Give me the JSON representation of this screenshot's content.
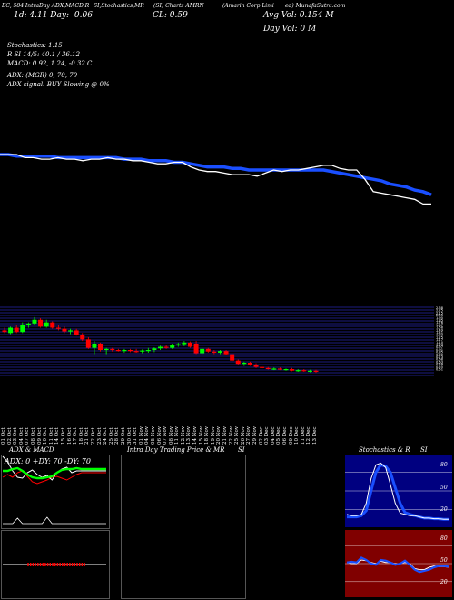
{
  "header": {
    "chart_links": "EC, 584 IntraDay ADX,MACD,R",
    "menu_links": "SI,Stochastics,MR",
    "symbol_links": "(SI) Charts AMRN",
    "company": "(Amarin Corp Limi",
    "domain": "ed) MunafaSutra.com",
    "change_line": "1d: 4.11  Day: -0.06",
    "close_line": "CL: 0.59",
    "avg_vol": "Avg Vol: 0.154  M",
    "day_vol": "Day Vol: 0  M"
  },
  "indicators": {
    "stochastics": "Stochastics: 1.15",
    "rsi": "R                SI 14/5: 40.1 / 36.12",
    "macd": "MACD: 0.92,  1.24,  -0.32  C",
    "adx": "ADX:                        (MGR) 0,  70,  70",
    "adx_signal": "ADX  signal:                          BUY Slowing @ 0%"
  },
  "panels": {
    "adx_macd_title": "ADX  & MACD",
    "adx_values": "ADX: 0   +DY: 70   -DY: 70",
    "intraday_title": "Intra  Day Trading Price  & MR",
    "intraday_si": "SI",
    "stoch_title": "Stochastics & R",
    "stoch_si": "SI",
    "stoch_levels": [
      "80",
      "50",
      "20"
    ],
    "rsi_levels": [
      "80",
      "50",
      "20"
    ]
  },
  "colors": {
    "up": "#00ff00",
    "down": "#ff0000",
    "blue_line": "#1a4fff",
    "white_line": "#ffffff",
    "price_grid": "#3838ff",
    "stoch_bg": "#000080",
    "rsi_bg": "#800000"
  },
  "chart_data": [
    {
      "type": "line",
      "name": "price-and-volume-moving-average",
      "series": [
        {
          "color": "#ffffff",
          "values": [
            100,
            100,
            100,
            98,
            98,
            97,
            97,
            98,
            97,
            97,
            96,
            97,
            97,
            98,
            97,
            97,
            96,
            96,
            95,
            94,
            94,
            95,
            95,
            92,
            90,
            89,
            89,
            88,
            87,
            87,
            87,
            86,
            88,
            90,
            89,
            90,
            90,
            91,
            92,
            93,
            93,
            91,
            90,
            90,
            84,
            76,
            75,
            74,
            73,
            72,
            71,
            68,
            68
          ]
        },
        {
          "color": "#1a4fff",
          "values": [
            100,
            100,
            99,
            99,
            99,
            99,
            99,
            98,
            98,
            98,
            98,
            98,
            98,
            98,
            98,
            97,
            97,
            97,
            96,
            96,
            96,
            95,
            95,
            94,
            93,
            92,
            92,
            92,
            91,
            91,
            90,
            90,
            90,
            90,
            90,
            90,
            90,
            90,
            90,
            90,
            89,
            88,
            87,
            86,
            85,
            84,
            83,
            81,
            80,
            79,
            77,
            76,
            74
          ]
        }
      ]
    },
    {
      "type": "candlestick",
      "name": "daily-price",
      "x": [
        "01 Oct",
        "02 Oct",
        "03 Oct",
        "04 Oct",
        "07 Oct",
        "08 Oct",
        "09 Oct",
        "10 Oct",
        "11 Oct",
        "14 Oct",
        "15 Oct",
        "16 Oct",
        "17 Oct",
        "18 Oct",
        "21 Oct",
        "22 Oct",
        "23 Oct",
        "24 Oct",
        "25 Oct",
        "28 Oct",
        "29 Oct",
        "30 Oct",
        "31 Oct",
        "01 Nov",
        "04 Nov",
        "05 Nov",
        "06 Nov",
        "07 Nov",
        "08 Nov",
        "11 Nov",
        "12 Nov",
        "13 Nov",
        "14 Nov",
        "15 Nov",
        "18 Nov",
        "19 Nov",
        "20 Nov",
        "21 Nov",
        "22 Nov",
        "25 Nov",
        "26 Nov",
        "27 Nov",
        "29 Nov",
        "02 Dec",
        "03 Dec",
        "04 Dec",
        "05 Dec",
        "06 Dec",
        "09 Dec",
        "10 Dec",
        "11 Dec",
        "12 Dec",
        "13 Dec"
      ],
      "ohlc": [
        [
          0.645,
          0.65,
          0.64,
          0.642
        ],
        [
          0.64,
          0.652,
          0.638,
          0.65
        ],
        [
          0.65,
          0.655,
          0.64,
          0.642
        ],
        [
          0.642,
          0.66,
          0.64,
          0.655
        ],
        [
          0.655,
          0.66,
          0.65,
          0.658
        ],
        [
          0.658,
          0.67,
          0.655,
          0.665
        ],
        [
          0.665,
          0.668,
          0.65,
          0.652
        ],
        [
          0.652,
          0.665,
          0.65,
          0.66
        ],
        [
          0.66,
          0.662,
          0.648,
          0.65
        ],
        [
          0.65,
          0.655,
          0.645,
          0.648
        ],
        [
          0.648,
          0.652,
          0.64,
          0.643
        ],
        [
          0.643,
          0.648,
          0.638,
          0.645
        ],
        [
          0.645,
          0.648,
          0.635,
          0.637
        ],
        [
          0.637,
          0.64,
          0.625,
          0.628
        ],
        [
          0.628,
          0.632,
          0.61,
          0.612
        ],
        [
          0.612,
          0.625,
          0.6,
          0.62
        ],
        [
          0.62,
          0.622,
          0.605,
          0.608
        ],
        [
          0.608,
          0.612,
          0.6,
          0.61
        ],
        [
          0.61,
          0.612,
          0.605,
          0.608
        ],
        [
          0.608,
          0.61,
          0.605,
          0.607
        ],
        [
          0.607,
          0.61,
          0.603,
          0.608
        ],
        [
          0.608,
          0.61,
          0.604,
          0.606
        ],
        [
          0.606,
          0.61,
          0.603,
          0.605
        ],
        [
          0.605,
          0.609,
          0.602,
          0.607
        ],
        [
          0.607,
          0.612,
          0.603,
          0.608
        ],
        [
          0.608,
          0.613,
          0.604,
          0.611
        ],
        [
          0.611,
          0.616,
          0.608,
          0.614
        ],
        [
          0.614,
          0.617,
          0.61,
          0.612
        ],
        [
          0.612,
          0.62,
          0.61,
          0.618
        ],
        [
          0.618,
          0.622,
          0.614,
          0.619
        ],
        [
          0.619,
          0.625,
          0.615,
          0.622
        ],
        [
          0.622,
          0.624,
          0.612,
          0.614
        ],
        [
          0.62,
          0.625,
          0.6,
          0.602
        ],
        [
          0.602,
          0.612,
          0.598,
          0.61
        ],
        [
          0.61,
          0.612,
          0.603,
          0.605
        ],
        [
          0.605,
          0.608,
          0.6,
          0.603
        ],
        [
          0.603,
          0.608,
          0.6,
          0.606
        ],
        [
          0.606,
          0.608,
          0.598,
          0.6
        ],
        [
          0.6,
          0.602,
          0.585,
          0.588
        ],
        [
          0.588,
          0.59,
          0.58,
          0.582
        ],
        [
          0.582,
          0.586,
          0.578,
          0.584
        ],
        [
          0.584,
          0.586,
          0.578,
          0.58
        ],
        [
          0.58,
          0.583,
          0.574,
          0.576
        ],
        [
          0.576,
          0.578,
          0.572,
          0.574
        ],
        [
          0.574,
          0.576,
          0.571,
          0.572
        ],
        [
          0.572,
          0.575,
          0.57,
          0.573
        ],
        [
          0.573,
          0.575,
          0.57,
          0.571
        ],
        [
          0.571,
          0.573,
          0.569,
          0.572
        ],
        [
          0.572,
          0.574,
          0.568,
          0.569
        ],
        [
          0.569,
          0.572,
          0.567,
          0.57
        ],
        [
          0.57,
          0.572,
          0.567,
          0.568
        ],
        [
          0.568,
          0.571,
          0.566,
          0.569
        ],
        [
          0.569,
          0.571,
          0.565,
          0.567
        ]
      ],
      "y_labels": [
        "2.38",
        "2.25",
        "2.15",
        "2.05",
        "1.95",
        "1.85",
        "1.76",
        "1.67",
        "1.58",
        "1.49",
        "1.41",
        "1.33",
        "1.25",
        "1.17",
        "1.10",
        "1.03",
        "0.97",
        "0.91",
        "0.85",
        "0.79",
        "0.73",
        "0.68",
        "0.63",
        "0.59",
        "0.55",
        "0.51"
      ]
    },
    {
      "type": "line",
      "name": "adx",
      "series": [
        {
          "name": "ADX",
          "color": "#00ff00",
          "values": [
            62,
            62,
            64,
            65,
            62,
            58,
            55,
            54,
            54,
            55,
            56,
            60,
            63,
            64,
            64,
            65,
            64,
            64,
            64,
            64,
            64,
            64
          ]
        },
        {
          "name": "+DY",
          "color": "#ffffff",
          "values": [
            78,
            72,
            62,
            55,
            54,
            60,
            63,
            58,
            55,
            57,
            52,
            60,
            64,
            66,
            60,
            62,
            62,
            62,
            62,
            62,
            62,
            62
          ]
        },
        {
          "name": "-DY",
          "color": "#ff0000",
          "values": [
            55,
            58,
            55,
            60,
            62,
            56,
            50,
            48,
            50,
            52,
            55,
            56,
            54,
            52,
            55,
            58,
            60,
            60,
            60,
            60,
            60,
            60
          ]
        }
      ]
    },
    {
      "type": "line",
      "name": "stochastics",
      "series": [
        {
          "name": "fast",
          "color": "#ffffff",
          "values": [
            12,
            10,
            10,
            12,
            30,
            70,
            92,
            95,
            88,
            60,
            30,
            14,
            12,
            10,
            10,
            8,
            6,
            6,
            5,
            5,
            4,
            4
          ]
        },
        {
          "name": "slow",
          "color": "#1a4fff",
          "values": [
            8,
            8,
            8,
            10,
            18,
            50,
            80,
            92,
            90,
            80,
            55,
            30,
            15,
            12,
            10,
            8,
            6,
            6,
            5,
            5,
            4,
            4
          ]
        }
      ]
    },
    {
      "type": "line",
      "name": "rsi",
      "series": [
        {
          "name": "rsi",
          "color": "#1a4fff",
          "values": [
            52,
            53,
            52,
            60,
            56,
            50,
            48,
            56,
            55,
            52,
            48,
            50,
            55,
            48,
            40,
            36,
            38,
            40,
            44,
            46,
            46,
            45
          ]
        },
        {
          "name": "mrsi",
          "color": "#ffffff",
          "values": [
            52,
            50,
            50,
            56,
            55,
            52,
            50,
            54,
            52,
            52,
            50,
            50,
            52,
            50,
            42,
            40,
            40,
            44,
            46,
            45,
            45,
            44
          ]
        }
      ]
    }
  ]
}
